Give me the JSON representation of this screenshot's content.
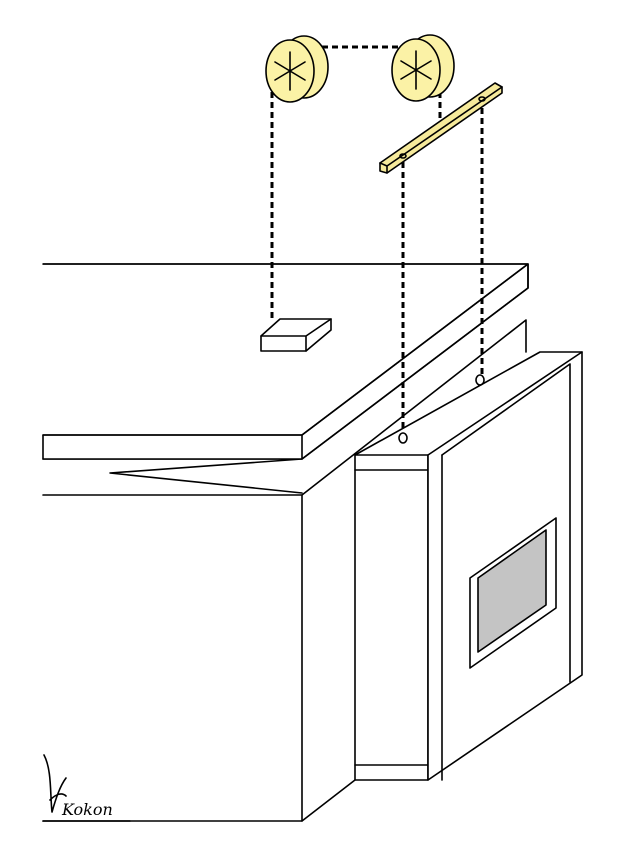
{
  "signature": {
    "text": "Kokon"
  },
  "colors": {
    "background": "#ffffff",
    "line": "#000000",
    "pulley_fill": "#fbf2a6",
    "bar_fill": "#f6ea9b",
    "window_glass": "#c4c4c4"
  }
}
